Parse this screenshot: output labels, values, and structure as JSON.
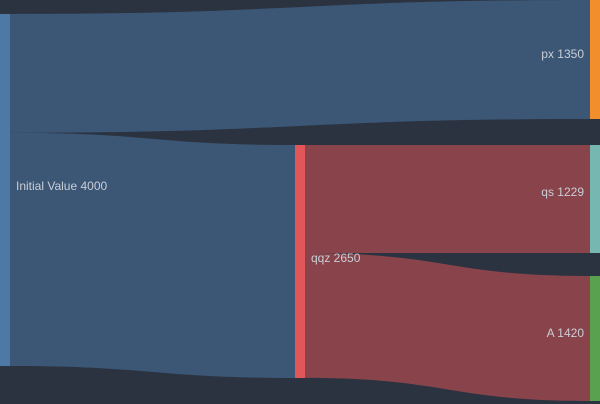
{
  "chart_data": {
    "type": "sankey",
    "background": "#2b3340",
    "nodes": [
      {
        "id": "initial",
        "name": "Initial Value",
        "value": 4000,
        "color": "#4e79a7"
      },
      {
        "id": "qqz",
        "name": "qqz",
        "value": 2650,
        "color": "#e15759"
      },
      {
        "id": "px",
        "name": "px",
        "value": 1350,
        "color": "#f28e2b"
      },
      {
        "id": "qs",
        "name": "qs",
        "value": 1229,
        "color": "#76b7b2"
      },
      {
        "id": "A",
        "name": "A",
        "value": 1420,
        "color": "#59a14f"
      }
    ],
    "links": [
      {
        "source": "initial",
        "target": "px",
        "value": 1350,
        "color": "#3c5676"
      },
      {
        "source": "initial",
        "target": "qqz",
        "value": 2650,
        "color": "#3c5676"
      },
      {
        "source": "qqz",
        "target": "qs",
        "value": 1229,
        "color": "#88434b"
      },
      {
        "source": "qqz",
        "target": "A",
        "value": 1420,
        "color": "#88434b"
      }
    ],
    "labels": {
      "initial": "Initial Value 4000",
      "qqz": "qqz 2650",
      "px": "px 1350",
      "qs": "qs 1229",
      "A": "A 1420"
    }
  }
}
